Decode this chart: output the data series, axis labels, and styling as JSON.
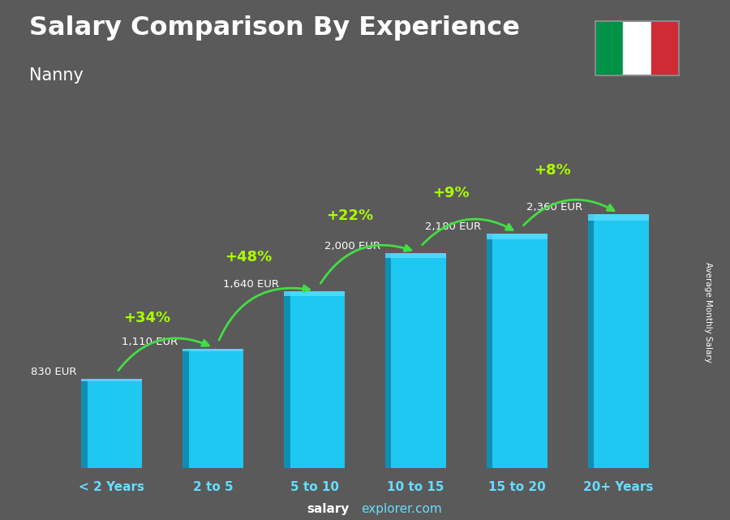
{
  "title": "Salary Comparison By Experience",
  "subtitle": "Nanny",
  "categories": [
    "< 2 Years",
    "2 to 5",
    "5 to 10",
    "10 to 15",
    "15 to 20",
    "20+ Years"
  ],
  "values": [
    830,
    1110,
    1640,
    2000,
    2180,
    2360
  ],
  "bar_color_main": "#1ec8f0",
  "bar_color_dark": "#0d8fb5",
  "bar_color_top": "#5adcff",
  "pct_changes": [
    "+34%",
    "+48%",
    "+22%",
    "+9%",
    "+8%"
  ],
  "salary_labels": [
    "830 EUR",
    "1,110 EUR",
    "1,640 EUR",
    "2,000 EUR",
    "2,180 EUR",
    "2,360 EUR"
  ],
  "pct_color": "#aaff00",
  "arrow_color": "#44dd44",
  "title_color": "#ffffff",
  "subtitle_color": "#ffffff",
  "watermark_bold": "salary",
  "watermark_normal": "explorer.com",
  "ylabel_text": "Average Monthly Salary",
  "bar_width": 0.6,
  "ylim": [
    0,
    2900
  ],
  "figsize": [
    9.0,
    6.41
  ],
  "dpi": 100,
  "bg_color": "#4a5a6a",
  "flag_green": "#009246",
  "flag_white": "#ffffff",
  "flag_red": "#ce2b37"
}
